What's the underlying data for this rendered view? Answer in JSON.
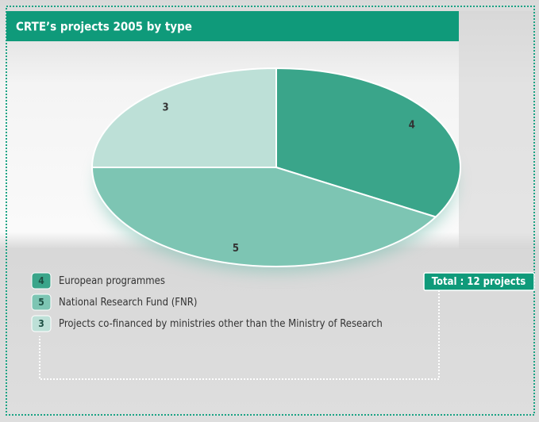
{
  "chart_data": {
    "type": "pie",
    "title": "CRTE’s projects 2005 by type",
    "categories": [
      "European programmes",
      "National Research Fund (FNR)",
      "Projects co-financed by ministries other than the Ministry of Research"
    ],
    "values": [
      4,
      5,
      3
    ],
    "colors": [
      "#3aa58a",
      "#7dc5b3",
      "#bde0d7"
    ],
    "annotation": "Total : 12 projects"
  }
}
